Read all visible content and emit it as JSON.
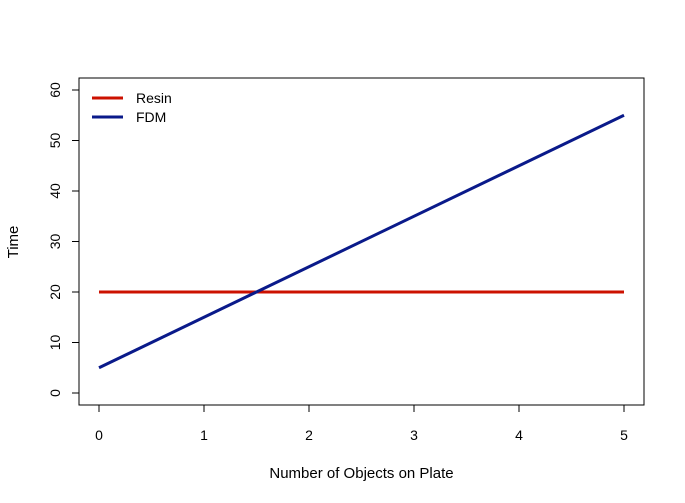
{
  "chart_data": {
    "type": "line",
    "title": "",
    "xlabel": "Number of Objects on Plate",
    "ylabel": "Time",
    "xlim": [
      0,
      5
    ],
    "ylim": [
      0,
      60
    ],
    "x_ticks": [
      0,
      1,
      2,
      3,
      4,
      5
    ],
    "y_ticks": [
      0,
      10,
      20,
      30,
      40,
      50,
      60
    ],
    "grid": false,
    "legend_position": "top-left",
    "series": [
      {
        "name": "Resin",
        "color": "#cc1100",
        "x": [
          0,
          5
        ],
        "y": [
          20,
          20
        ]
      },
      {
        "name": "FDM",
        "color": "#0a1a8a",
        "x": [
          0,
          5
        ],
        "y": [
          5,
          55
        ]
      }
    ]
  }
}
